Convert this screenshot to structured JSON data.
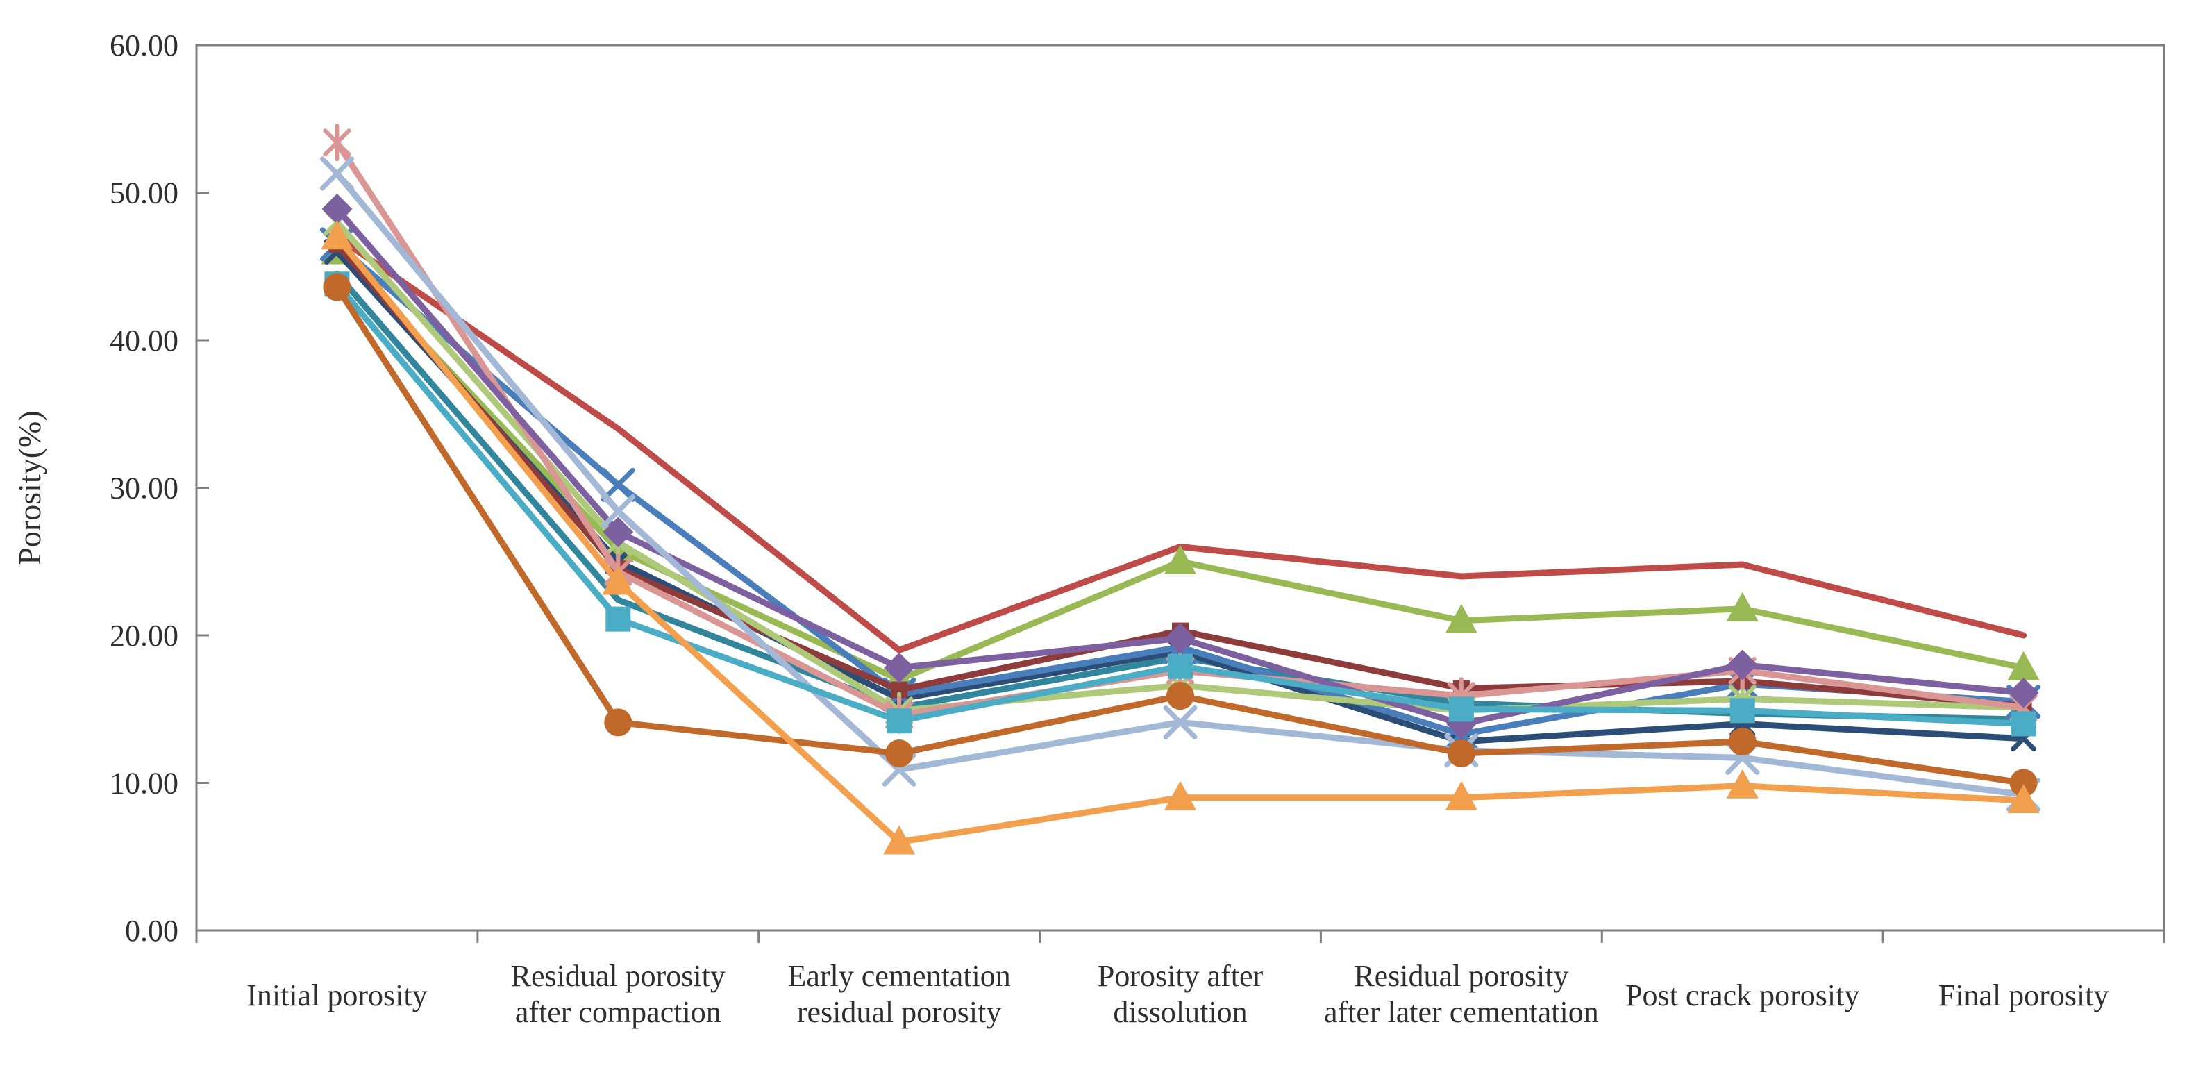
{
  "chart_data": {
    "type": "line",
    "title": "",
    "ylabel": "Porosity(%)",
    "xlabel": "",
    "ylim": [
      0,
      60
    ],
    "ytick_labels": [
      "0.00",
      "10.00",
      "20.00",
      "30.00",
      "40.00",
      "50.00",
      "60.00"
    ],
    "grid": false,
    "legend": "none",
    "categories": [
      "Initial porosity",
      "Residual porosity\nafter compaction",
      "Early cementation\nresidual porosity",
      "Porosity after\ndissolution",
      "Residual porosity\nafter later cementation",
      "Post crack porosity",
      "Final porosity"
    ],
    "series": [
      {
        "name": "red-line",
        "color": "#BE4B48",
        "marker": "none",
        "values": [
          47.0,
          34.0,
          19.0,
          26.0,
          24.0,
          24.8,
          20.0
        ]
      },
      {
        "name": "olive-triangle",
        "color": "#98B954",
        "marker": "triangle",
        "values": [
          46.0,
          25.8,
          17.0,
          25.0,
          21.0,
          21.8,
          17.8
        ]
      },
      {
        "name": "teal-line",
        "color": "#31859C",
        "marker": "none",
        "values": [
          44.5,
          22.4,
          15.1,
          18.5,
          15.4,
          14.7,
          14.3
        ]
      },
      {
        "name": "navy-x",
        "color": "#2C4D75",
        "marker": "xsmall",
        "values": [
          46.0,
          25.0,
          15.7,
          18.9,
          12.8,
          14.0,
          13.0
        ]
      },
      {
        "name": "blue-x",
        "color": "#4A7EBB",
        "marker": "x",
        "values": [
          46.5,
          30.2,
          16.0,
          19.2,
          13.3,
          16.7,
          15.5
        ]
      },
      {
        "name": "maroon-square",
        "color": "#8E3B3B",
        "marker": "sqsmall",
        "values": [
          46.5,
          24.5,
          16.3,
          20.3,
          16.4,
          16.9,
          15.2
        ]
      },
      {
        "name": "lightgreen-star",
        "color": "#AFC97A",
        "marker": "asterisk",
        "values": [
          48.0,
          26.3,
          14.9,
          16.6,
          14.9,
          15.7,
          15.1
        ]
      },
      {
        "name": "pink-star",
        "color": "#D99694",
        "marker": "asterisk",
        "values": [
          53.4,
          24.3,
          14.6,
          17.6,
          15.9,
          17.6,
          15.1
        ]
      },
      {
        "name": "purple-diamond",
        "color": "#7D60A0",
        "marker": "diamond",
        "values": [
          48.9,
          27.0,
          17.8,
          19.8,
          14.0,
          18.0,
          16.1
        ]
      },
      {
        "name": "paleblue-x",
        "color": "#A3B8D6",
        "marker": "x",
        "values": [
          51.3,
          28.4,
          10.9,
          14.1,
          12.2,
          11.7,
          9.2
        ]
      },
      {
        "name": "cyan-square",
        "color": "#4BACC6",
        "marker": "square",
        "values": [
          43.8,
          21.1,
          14.2,
          17.9,
          15.0,
          14.9,
          14.0
        ]
      },
      {
        "name": "brown-circle",
        "color": "#C0692B",
        "marker": "circle",
        "values": [
          43.6,
          14.1,
          12.0,
          15.9,
          12.0,
          12.8,
          10.0
        ]
      },
      {
        "name": "orange-triangle",
        "color": "#F2A04E",
        "marker": "triangle",
        "values": [
          47.0,
          23.6,
          6.0,
          9.0,
          9.0,
          9.8,
          8.8
        ]
      }
    ]
  }
}
